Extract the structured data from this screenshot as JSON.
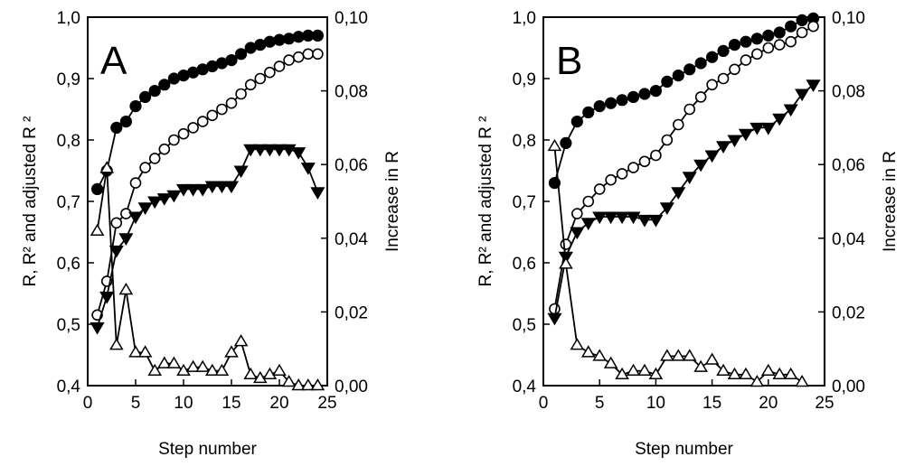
{
  "chart_data": [
    {
      "type": "line",
      "panel_label": "A",
      "xlabel": "Step number",
      "ylabel": "R, R² and adjusted R ²",
      "y2label": "Increase in R",
      "xlim": [
        0,
        25
      ],
      "ylim": [
        0.4,
        1.0
      ],
      "y2lim": [
        0.0,
        0.1
      ],
      "xticks": [
        "0",
        "5",
        "10",
        "15",
        "20",
        "25"
      ],
      "yticks": [
        "0,4",
        "0,5",
        "0,6",
        "0,7",
        "0,8",
        "0,9",
        "1,0"
      ],
      "y2ticks": [
        "0,00",
        "0,02",
        "0,04",
        "0,06",
        "0,08",
        "0,10"
      ],
      "grid": false,
      "series": [
        {
          "marker": "filled-circle",
          "axis": "left",
          "x": [
            1,
            2,
            3,
            4,
            5,
            6,
            7,
            8,
            9,
            10,
            11,
            12,
            13,
            14,
            15,
            16,
            17,
            18,
            19,
            20,
            21,
            22,
            23,
            24
          ],
          "y": [
            0.72,
            0.75,
            0.82,
            0.83,
            0.855,
            0.87,
            0.88,
            0.89,
            0.9,
            0.905,
            0.91,
            0.915,
            0.92,
            0.925,
            0.93,
            0.94,
            0.95,
            0.955,
            0.96,
            0.963,
            0.965,
            0.968,
            0.97,
            0.97
          ]
        },
        {
          "marker": "open-circle",
          "axis": "left",
          "x": [
            1,
            2,
            3,
            4,
            5,
            6,
            7,
            8,
            9,
            10,
            11,
            12,
            13,
            14,
            15,
            16,
            17,
            18,
            19,
            20,
            21,
            22,
            23,
            24
          ],
          "y": [
            0.515,
            0.57,
            0.665,
            0.68,
            0.73,
            0.755,
            0.77,
            0.785,
            0.8,
            0.81,
            0.82,
            0.83,
            0.84,
            0.85,
            0.86,
            0.875,
            0.89,
            0.9,
            0.91,
            0.92,
            0.93,
            0.935,
            0.94,
            0.94
          ]
        },
        {
          "marker": "filled-triangle-down",
          "axis": "left",
          "x": [
            1,
            2,
            3,
            4,
            5,
            6,
            7,
            8,
            9,
            10,
            11,
            12,
            13,
            14,
            15,
            16,
            17,
            18,
            19,
            20,
            21,
            22,
            23,
            24
          ],
          "y": [
            0.495,
            0.545,
            0.62,
            0.64,
            0.675,
            0.69,
            0.7,
            0.705,
            0.71,
            0.72,
            0.72,
            0.72,
            0.725,
            0.725,
            0.725,
            0.75,
            0.785,
            0.785,
            0.785,
            0.785,
            0.785,
            0.78,
            0.755,
            0.715
          ]
        },
        {
          "marker": "open-triangle-up",
          "axis": "right",
          "x": [
            1,
            2,
            3,
            4,
            5,
            6,
            7,
            8,
            9,
            10,
            11,
            12,
            13,
            14,
            15,
            16,
            17,
            18,
            19,
            20,
            21,
            22,
            23,
            24
          ],
          "y": [
            0.042,
            0.059,
            0.011,
            0.026,
            0.009,
            0.009,
            0.004,
            0.006,
            0.006,
            0.004,
            0.005,
            0.005,
            0.004,
            0.004,
            0.009,
            0.012,
            0.003,
            0.002,
            0.003,
            0.004,
            0.001,
            0.0,
            0.0,
            0.0
          ]
        }
      ]
    },
    {
      "type": "line",
      "panel_label": "B",
      "xlabel": "Step number",
      "ylabel": "R, R² and adjusted R ²",
      "y2label": "Increase in R",
      "xlim": [
        0,
        25
      ],
      "ylim": [
        0.4,
        1.0
      ],
      "y2lim": [
        0.0,
        0.1
      ],
      "xticks": [
        "0",
        "5",
        "10",
        "15",
        "20",
        "25"
      ],
      "yticks": [
        "0,4",
        "0,5",
        "0,6",
        "0,7",
        "0,8",
        "0,9",
        "1,0"
      ],
      "y2ticks": [
        "0,00",
        "0,02",
        "0,04",
        "0,06",
        "0,08",
        "0,10"
      ],
      "grid": false,
      "series": [
        {
          "marker": "filled-circle",
          "axis": "left",
          "x": [
            1,
            2,
            3,
            4,
            5,
            6,
            7,
            8,
            9,
            10,
            11,
            12,
            13,
            14,
            15,
            16,
            17,
            18,
            19,
            20,
            21,
            22,
            23,
            24
          ],
          "y": [
            0.73,
            0.795,
            0.83,
            0.845,
            0.855,
            0.86,
            0.865,
            0.87,
            0.875,
            0.88,
            0.895,
            0.905,
            0.915,
            0.925,
            0.935,
            0.945,
            0.955,
            0.96,
            0.965,
            0.97,
            0.975,
            0.985,
            0.995,
            0.998
          ]
        },
        {
          "marker": "open-circle",
          "axis": "left",
          "x": [
            1,
            2,
            3,
            4,
            5,
            6,
            7,
            8,
            9,
            10,
            11,
            12,
            13,
            14,
            15,
            16,
            17,
            18,
            19,
            20,
            21,
            22,
            23,
            24
          ],
          "y": [
            0.525,
            0.63,
            0.68,
            0.7,
            0.72,
            0.735,
            0.745,
            0.755,
            0.765,
            0.775,
            0.8,
            0.825,
            0.85,
            0.87,
            0.89,
            0.9,
            0.915,
            0.93,
            0.94,
            0.95,
            0.955,
            0.96,
            0.975,
            0.985
          ]
        },
        {
          "marker": "filled-triangle-down",
          "axis": "left",
          "x": [
            1,
            2,
            3,
            4,
            5,
            6,
            7,
            8,
            9,
            10,
            11,
            12,
            13,
            14,
            15,
            16,
            17,
            18,
            19,
            20,
            21,
            22,
            23,
            24
          ],
          "y": [
            0.51,
            0.61,
            0.65,
            0.665,
            0.675,
            0.675,
            0.675,
            0.675,
            0.67,
            0.67,
            0.69,
            0.715,
            0.74,
            0.76,
            0.775,
            0.79,
            0.8,
            0.81,
            0.82,
            0.82,
            0.835,
            0.85,
            0.875,
            0.89
          ]
        },
        {
          "marker": "open-triangle-up",
          "axis": "right",
          "x": [
            1,
            2,
            3,
            4,
            5,
            6,
            7,
            8,
            9,
            10,
            11,
            12,
            13,
            14,
            15,
            16,
            17,
            18,
            19,
            20,
            21,
            22,
            23
          ],
          "y": [
            0.065,
            0.033,
            0.011,
            0.009,
            0.008,
            0.006,
            0.003,
            0.004,
            0.004,
            0.003,
            0.008,
            0.008,
            0.008,
            0.005,
            0.007,
            0.004,
            0.003,
            0.003,
            0.001,
            0.004,
            0.003,
            0.003,
            0.001
          ]
        }
      ]
    }
  ]
}
